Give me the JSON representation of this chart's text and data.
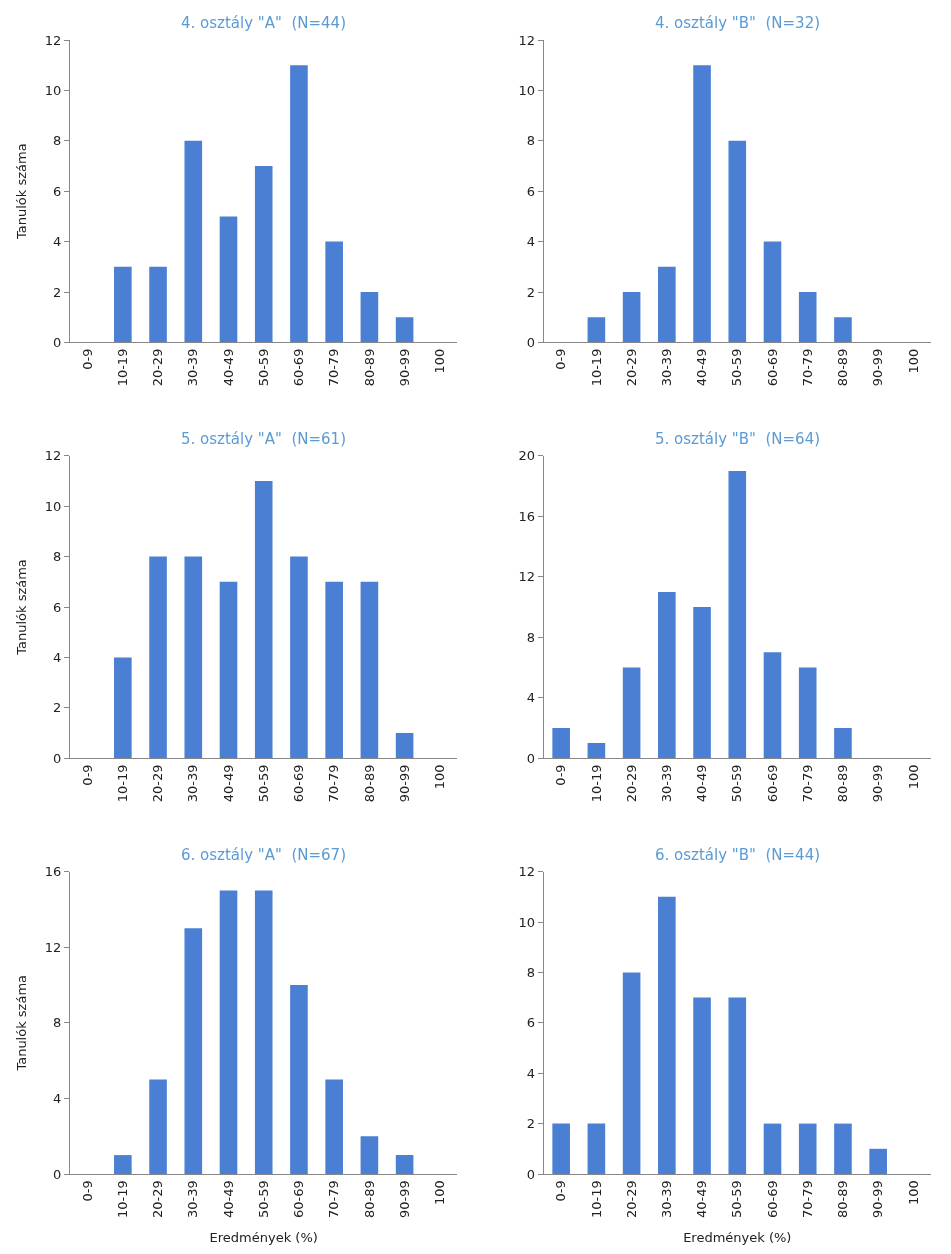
{
  "chart_data": [
    {
      "type": "bar",
      "title": "4. osztály \"A\"  (N=44)",
      "ylabel": "Tanulók száma",
      "categories": [
        "0-9",
        "10-19",
        "20-29",
        "30-39",
        "40-49",
        "50-59",
        "60-69",
        "70-79",
        "80-89",
        "90-99",
        "100"
      ],
      "values": [
        0,
        3,
        3,
        8,
        5,
        7,
        11,
        4,
        2,
        1,
        0
      ],
      "color": "#4a7fd4",
      "ylim": [
        0,
        12
      ],
      "yticks": [
        0,
        2,
        4,
        6,
        8,
        10,
        12
      ]
    },
    {
      "type": "bar",
      "title": "4. osztály \"B\"  (N=32)",
      "categories": [
        "0-9",
        "10-19",
        "20-29",
        "30-39",
        "40-49",
        "50-59",
        "60-69",
        "70-79",
        "80-89",
        "90-99",
        "100"
      ],
      "values": [
        0,
        1,
        2,
        3,
        11,
        8,
        4,
        2,
        1,
        0,
        0
      ],
      "color": "#4a7fd4",
      "ylim": [
        0,
        12
      ],
      "yticks": [
        0,
        2,
        4,
        6,
        8,
        10,
        12
      ]
    },
    {
      "type": "bar",
      "title": "5. osztály \"A\"  (N=61)",
      "ylabel": "Tanulók száma",
      "categories": [
        "0-9",
        "10-19",
        "20-29",
        "30-39",
        "40-49",
        "50-59",
        "60-69",
        "70-79",
        "80-89",
        "90-99",
        "100"
      ],
      "values": [
        0,
        4,
        8,
        8,
        7,
        11,
        8,
        7,
        7,
        1,
        0
      ],
      "color": "#4a7fd4",
      "ylim": [
        0,
        12
      ],
      "yticks": [
        0,
        2,
        4,
        6,
        8,
        10,
        12
      ]
    },
    {
      "type": "bar",
      "title": "5. osztály \"B\"  (N=64)",
      "categories": [
        "0-9",
        "10-19",
        "20-29",
        "30-39",
        "40-49",
        "50-59",
        "60-69",
        "70-79",
        "80-89",
        "90-99",
        "100"
      ],
      "values": [
        2,
        1,
        6,
        11,
        10,
        19,
        7,
        6,
        2,
        0,
        0
      ],
      "color": "#4a7fd4",
      "ylim": [
        0,
        20
      ],
      "yticks": [
        0,
        4,
        8,
        12,
        16,
        20
      ]
    },
    {
      "type": "bar",
      "title": "6. osztály \"A\"  (N=67)",
      "ylabel": "Tanulók száma",
      "xlabel": "Eredmények (%)",
      "categories": [
        "0-9",
        "10-19",
        "20-29",
        "30-39",
        "40-49",
        "50-59",
        "60-69",
        "70-79",
        "80-89",
        "90-99",
        "100"
      ],
      "values": [
        0,
        1,
        5,
        13,
        15,
        15,
        10,
        5,
        2,
        1,
        0
      ],
      "color": "#4a7fd4",
      "ylim": [
        0,
        16
      ],
      "yticks": [
        0,
        4,
        8,
        12,
        16
      ]
    },
    {
      "type": "bar",
      "title": "6. osztály \"B\"  (N=44)",
      "xlabel": "Eredmények (%)",
      "categories": [
        "0-9",
        "10-19",
        "20-29",
        "30-39",
        "40-49",
        "50-59",
        "60-69",
        "70-79",
        "80-89",
        "90-99",
        "100"
      ],
      "values": [
        2,
        2,
        8,
        11,
        7,
        7,
        2,
        2,
        2,
        1,
        0
      ],
      "color": "#4a7fd4",
      "ylim": [
        0,
        12
      ],
      "yticks": [
        0,
        2,
        4,
        6,
        8,
        10,
        12
      ]
    }
  ]
}
